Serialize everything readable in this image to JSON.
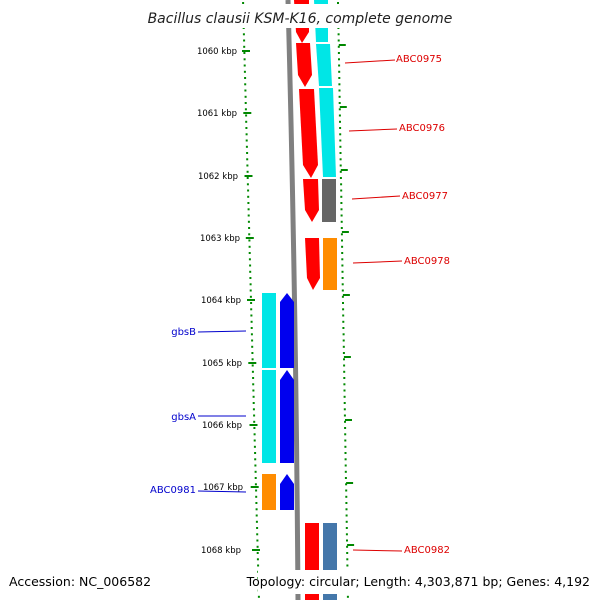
{
  "title": "Bacillus clausii KSM-K16, complete genome",
  "footer": {
    "accession": "Accession: NC_006582",
    "topology": "Topology: circular; Length: 4,303,871 bp; Genes: 4,192"
  },
  "scale": {
    "unit": "kbp",
    "ticks": [
      "1060 kbp",
      "1061 kbp",
      "1062 kbp",
      "1063 kbp",
      "1064 kbp",
      "1065 kbp",
      "1066 kbp",
      "1067 kbp",
      "1068 kbp"
    ]
  },
  "colors": {
    "red": "#ff0000",
    "cyan": "#00e6e6",
    "blue": "#0000ee",
    "orange": "#ff8c00",
    "gray": "#666666",
    "steelblue": "#4477aa",
    "backbone": "#808080",
    "tick_green": "#008800",
    "label_red": "#dd0000",
    "label_blue": "#0000cc"
  },
  "genes": [
    {
      "label": "ABC0975",
      "color_key": "label_red"
    },
    {
      "label": "ABC0976",
      "color_key": "label_red"
    },
    {
      "label": "ABC0977",
      "color_key": "label_red"
    },
    {
      "label": "ABC0978",
      "color_key": "label_red"
    },
    {
      "label": "gbsB",
      "color_key": "label_blue"
    },
    {
      "label": "gbsA",
      "color_key": "label_blue"
    },
    {
      "label": "ABC0981",
      "color_key": "label_blue"
    },
    {
      "label": "ABC0982",
      "color_key": "label_red"
    }
  ]
}
